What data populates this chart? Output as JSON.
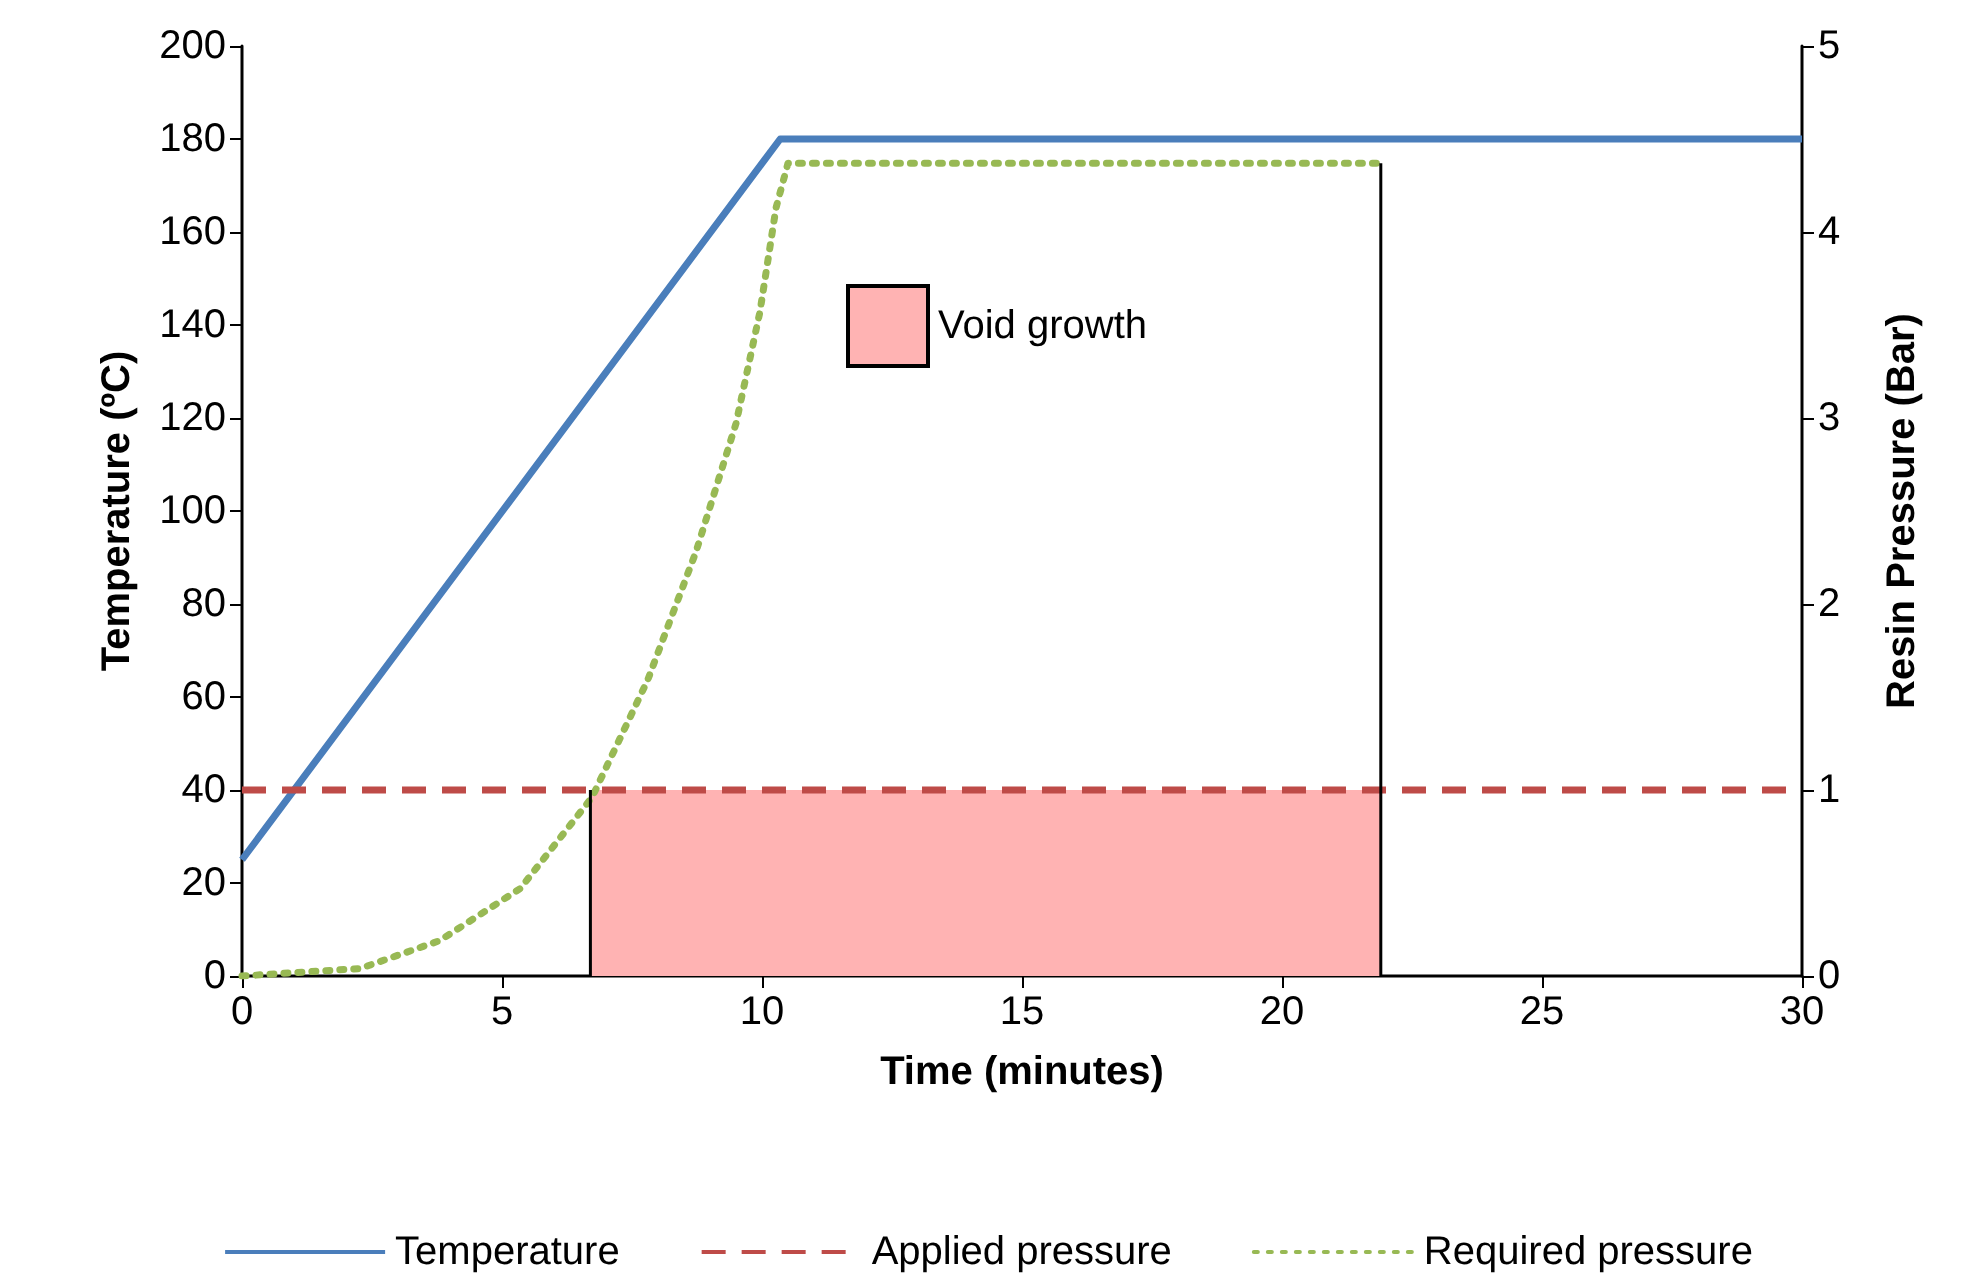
{
  "chart_data": {
    "type": "line",
    "xlabel": "Time (minutes)",
    "ylabel": "Temperature (ºC)",
    "y2label": "Resin Pressure (Bar)",
    "xlim": [
      0,
      30
    ],
    "xticks": [
      0,
      5,
      10,
      15,
      20,
      25,
      30
    ],
    "ylim": [
      0,
      200
    ],
    "yticks": [
      0,
      20,
      40,
      60,
      80,
      100,
      120,
      140,
      160,
      180,
      200
    ],
    "y2lim": [
      0,
      5
    ],
    "y2ticks": [
      0,
      1,
      2,
      3,
      4,
      5
    ],
    "grid": false,
    "legend": "bottom",
    "marker": "none",
    "series": [
      {
        "name": "Temperature",
        "color": "#4a7ebb",
        "line_style": "solid",
        "x": [
          0,
          10.35,
          30
        ],
        "values": [
          25,
          180,
          180
        ]
      },
      {
        "name": "Applied pressure",
        "color": "#be4b48",
        "line_style": "dashed",
        "axis": "y2",
        "x": [
          0,
          30
        ],
        "values": [
          1,
          1
        ]
      },
      {
        "name": "Required pressure",
        "color": "#98b954",
        "line_style": "dotted",
        "axis": "y2",
        "x": [
          0,
          2.27,
          3.8,
          5.35,
          6.73,
          7.8,
          8.73,
          9.5,
          9.96,
          10.27,
          10.5,
          22
        ],
        "values": [
          0,
          0.04,
          0.19,
          0.47,
          0.96,
          1.59,
          2.28,
          2.97,
          3.57,
          4.13,
          4.37,
          4.37
        ]
      },
      {
        "name": "Void growth",
        "type": "area",
        "color": "#ffb3b3",
        "axis": "y2",
        "x": [
          6.7,
          21.9
        ],
        "values": [
          1,
          1
        ]
      },
      {
        "type": "line",
        "color": "#000000",
        "line_style": "solid",
        "axis": "y2",
        "x": [
          6.7,
          6.7
        ],
        "values": [
          0,
          1
        ]
      },
      {
        "type": "line",
        "color": "#000000",
        "line_style": "solid",
        "axis": "y2",
        "x": [
          21.9,
          21.9
        ],
        "values": [
          0,
          4.37
        ]
      }
    ]
  }
}
